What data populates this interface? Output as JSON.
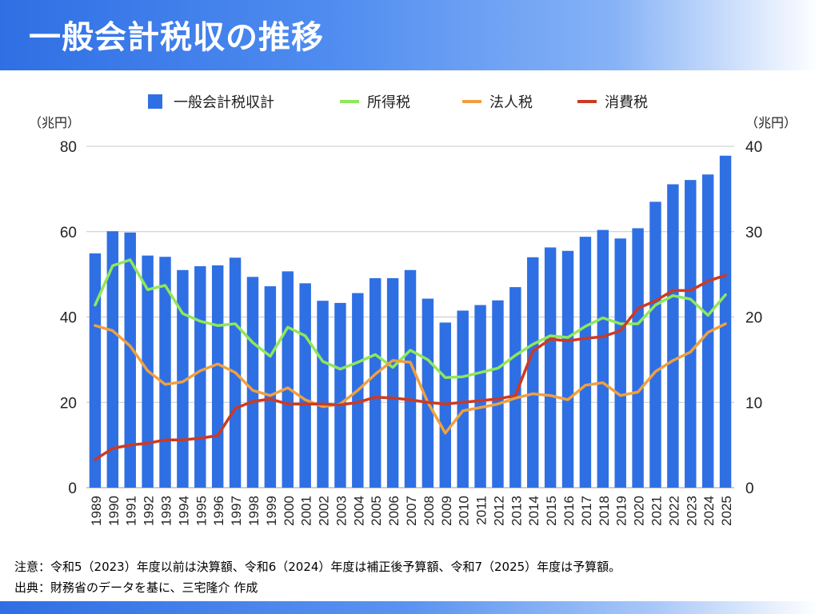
{
  "header": {
    "title": "一般会計税収の推移"
  },
  "notes": {
    "note": "注意：令和5（2023）年度以前は決算額、令和6（2024）年度は補正後予算額、令和7（2025）年度は予算額。",
    "source": "出典：財務省のデータを基に、三宅隆介 作成"
  },
  "chart_data": {
    "type": "bar",
    "categories": [
      "1989",
      "1990",
      "1991",
      "1992",
      "1993",
      "1994",
      "1995",
      "1996",
      "1997",
      "1998",
      "1999",
      "2000",
      "2001",
      "2002",
      "2003",
      "2004",
      "2005",
      "2006",
      "2007",
      "2008",
      "2009",
      "2010",
      "2011",
      "2012",
      "2013",
      "2014",
      "2015",
      "2016",
      "2017",
      "2018",
      "2019",
      "2020",
      "2021",
      "2022",
      "2023",
      "2024",
      "2025"
    ],
    "y_left": {
      "label": "（兆円）",
      "range": [
        0,
        80
      ],
      "ticks": [
        0,
        20,
        40,
        60,
        80
      ]
    },
    "y_right": {
      "label": "（兆円）",
      "range": [
        0,
        40
      ],
      "ticks": [
        0,
        10,
        20,
        30,
        40
      ]
    },
    "grid": true,
    "legend_position": "top",
    "series": [
      {
        "name": "一般会計税収計",
        "type": "bar",
        "axis": "left",
        "color": "#2f6fe4",
        "values": [
          54.9,
          60.1,
          59.8,
          54.4,
          54.1,
          51.0,
          51.9,
          52.1,
          53.9,
          49.4,
          47.2,
          50.7,
          47.9,
          43.8,
          43.3,
          45.6,
          49.1,
          49.1,
          51.0,
          44.3,
          38.7,
          41.5,
          42.8,
          43.9,
          47.0,
          54.0,
          56.3,
          55.5,
          58.8,
          60.4,
          58.4,
          60.8,
          67.0,
          71.1,
          72.1,
          73.4,
          77.8
        ]
      },
      {
        "name": "所得税",
        "type": "line",
        "axis": "right",
        "color": "#8ee85a",
        "values": [
          21.4,
          26.0,
          26.7,
          23.2,
          23.7,
          20.4,
          19.5,
          19.0,
          19.2,
          17.0,
          15.4,
          18.8,
          17.8,
          14.8,
          13.9,
          14.7,
          15.6,
          14.1,
          16.1,
          15.0,
          12.9,
          13.0,
          13.5,
          14.0,
          15.5,
          16.8,
          17.8,
          17.6,
          18.9,
          19.9,
          19.2,
          19.2,
          21.4,
          22.5,
          22.1,
          20.2,
          22.6
        ]
      },
      {
        "name": "法人税",
        "type": "line",
        "axis": "right",
        "color": "#f0a040",
        "values": [
          19.0,
          18.4,
          16.6,
          13.7,
          12.1,
          12.4,
          13.7,
          14.5,
          13.5,
          11.4,
          10.8,
          11.7,
          10.3,
          9.5,
          9.8,
          11.4,
          13.3,
          14.9,
          14.7,
          10.0,
          6.4,
          9.0,
          9.4,
          9.8,
          10.5,
          11.0,
          10.8,
          10.3,
          12.0,
          12.3,
          10.8,
          11.2,
          13.6,
          14.9,
          15.9,
          18.2,
          19.2
        ]
      },
      {
        "name": "消費税",
        "type": "line",
        "axis": "right",
        "color": "#cc3a22",
        "values": [
          3.3,
          4.6,
          5.0,
          5.2,
          5.6,
          5.6,
          5.8,
          6.1,
          9.3,
          10.1,
          10.4,
          9.8,
          9.8,
          9.8,
          9.7,
          10.0,
          10.6,
          10.5,
          10.3,
          10.0,
          9.8,
          10.0,
          10.2,
          10.4,
          10.8,
          16.0,
          17.4,
          17.2,
          17.5,
          17.7,
          18.4,
          21.0,
          21.9,
          23.1,
          23.1,
          24.2,
          24.9
        ]
      }
    ]
  }
}
